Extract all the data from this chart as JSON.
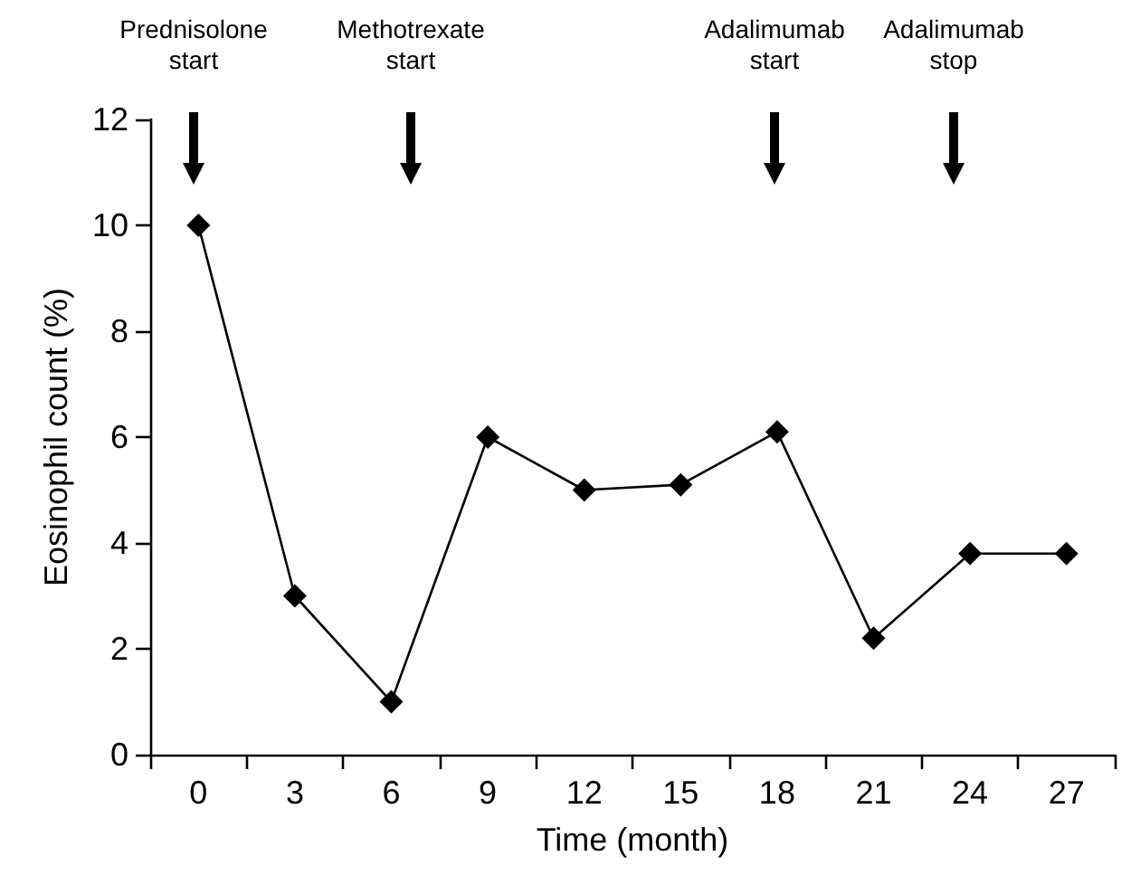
{
  "chart_data": {
    "type": "line",
    "xlabel": "Time (month)",
    "ylabel": "Eosinophil count (%)",
    "x": [
      0,
      3,
      6,
      9,
      12,
      15,
      18,
      21,
      24,
      27
    ],
    "series": [
      {
        "color": "#000000",
        "values": [
          10,
          3,
          1,
          6,
          5,
          5.1,
          6.1,
          2.2,
          3.8,
          3.8
        ]
      }
    ],
    "xlim": [
      -1.5,
      28.5
    ],
    "xticks": [
      {
        "value": -1.5,
        "label": null
      },
      0,
      {
        "value": 1.5,
        "label": null
      },
      3,
      {
        "value": 4.5,
        "label": null
      },
      6,
      {
        "value": 7.5,
        "label": null
      },
      9,
      {
        "value": 10.5,
        "label": null
      },
      12,
      {
        "value": 13.5,
        "label": null
      },
      15,
      {
        "value": 16.5,
        "label": null
      },
      18,
      {
        "value": 19.5,
        "label": null
      },
      21,
      {
        "value": 22.5,
        "label": null
      },
      24,
      {
        "value": 25.5,
        "label": null
      },
      27,
      {
        "value": 28.5,
        "label": null
      }
    ],
    "ylim": [
      0,
      12
    ],
    "yticks": [
      0,
      2,
      4,
      6,
      8,
      10,
      12
    ],
    "annotations": [
      "Prednisolone\nstart",
      "Methotrexate\nstart",
      "Adalimumab\nstart",
      "Adalimumab\nstop"
    ],
    "grid": false,
    "marker": "diamond",
    "line_style": "solid"
  }
}
